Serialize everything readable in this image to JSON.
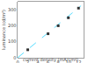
{
  "chart_data": {
    "type": "scatter",
    "xlabel": "current density (mA/cm²)",
    "ylabel": "luminance (cd/m²)",
    "series": [
      {
        "type": "line",
        "x": [
          0,
          12.5
        ],
        "values": [
          0,
          325
        ],
        "color": "#55ddff",
        "line_style": "dashed"
      },
      {
        "type": "scatter",
        "x": [
          2,
          6,
          8,
          10,
          12
        ],
        "values": [
          50,
          150,
          200,
          250,
          310
        ],
        "color": "#333333",
        "marker": "square"
      }
    ],
    "xlim": [
      0,
      13
    ],
    "ylim": [
      0,
      350
    ],
    "xticks": [
      0,
      2,
      4,
      6,
      8,
      10,
      12
    ],
    "yticks": [
      0,
      100,
      200,
      300
    ],
    "grid": false
  }
}
